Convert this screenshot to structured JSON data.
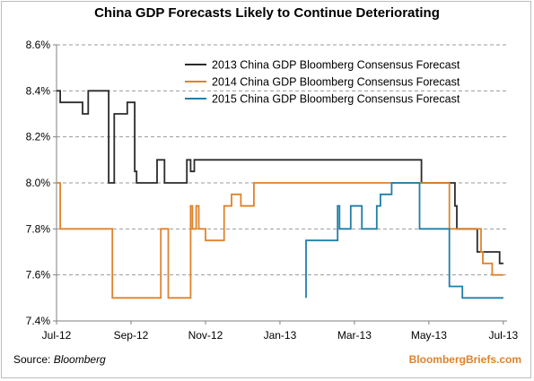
{
  "chart_data": {
    "type": "line",
    "title": "China GDP Forecasts Likely to Continue Deteriorating",
    "xlabel": "",
    "ylabel": "",
    "x_ticks": [
      "Jul-12",
      "Sep-12",
      "Nov-12",
      "Jan-13",
      "Mar-13",
      "May-13",
      "Jul-13"
    ],
    "y_ticks": [
      "7.4%",
      "7.6%",
      "7.8%",
      "8.0%",
      "8.2%",
      "8.4%",
      "8.6%"
    ],
    "ylim": [
      7.4,
      8.6
    ],
    "y_unit": "%",
    "x_unit": "months since Jul-12",
    "xlim": [
      0,
      12.1
    ],
    "grid": "horizontal dashed",
    "legend_position": "top-right",
    "series": [
      {
        "name": "2013 China GDP Bloomberg Consensus Forecast",
        "color": "#2b2b2b",
        "points": [
          [
            0.0,
            8.4
          ],
          [
            0.1,
            8.4
          ],
          [
            0.1,
            8.35
          ],
          [
            0.7,
            8.35
          ],
          [
            0.7,
            8.3
          ],
          [
            0.85,
            8.3
          ],
          [
            0.85,
            8.4
          ],
          [
            1.4,
            8.4
          ],
          [
            1.4,
            8.0
          ],
          [
            1.55,
            8.0
          ],
          [
            1.55,
            8.3
          ],
          [
            1.9,
            8.3
          ],
          [
            1.9,
            8.35
          ],
          [
            2.1,
            8.35
          ],
          [
            2.1,
            8.05
          ],
          [
            2.15,
            8.05
          ],
          [
            2.15,
            8.0
          ],
          [
            2.7,
            8.0
          ],
          [
            2.7,
            8.1
          ],
          [
            2.9,
            8.1
          ],
          [
            2.9,
            8.0
          ],
          [
            3.5,
            8.0
          ],
          [
            3.5,
            8.1
          ],
          [
            3.6,
            8.1
          ],
          [
            3.6,
            8.05
          ],
          [
            3.7,
            8.05
          ],
          [
            3.7,
            8.1
          ],
          [
            9.8,
            8.1
          ],
          [
            9.8,
            8.0
          ],
          [
            10.7,
            8.0
          ],
          [
            10.7,
            7.9
          ],
          [
            10.75,
            7.9
          ],
          [
            10.75,
            7.8
          ],
          [
            11.3,
            7.8
          ],
          [
            11.3,
            7.7
          ],
          [
            11.9,
            7.7
          ],
          [
            11.9,
            7.65
          ],
          [
            12.0,
            7.65
          ]
        ]
      },
      {
        "name": "2014 China GDP Bloomberg Consensus Forecast",
        "color": "#e0822a",
        "points": [
          [
            0.0,
            8.0
          ],
          [
            0.1,
            8.0
          ],
          [
            0.1,
            7.8
          ],
          [
            1.5,
            7.8
          ],
          [
            1.5,
            7.5
          ],
          [
            2.8,
            7.5
          ],
          [
            2.8,
            7.8
          ],
          [
            3.0,
            7.8
          ],
          [
            3.0,
            7.5
          ],
          [
            3.6,
            7.5
          ],
          [
            3.6,
            7.9
          ],
          [
            3.65,
            7.9
          ],
          [
            3.65,
            7.8
          ],
          [
            3.75,
            7.8
          ],
          [
            3.75,
            7.9
          ],
          [
            3.82,
            7.9
          ],
          [
            3.82,
            7.8
          ],
          [
            4.0,
            7.8
          ],
          [
            4.0,
            7.75
          ],
          [
            4.5,
            7.75
          ],
          [
            4.5,
            7.9
          ],
          [
            4.7,
            7.9
          ],
          [
            4.7,
            7.95
          ],
          [
            4.95,
            7.95
          ],
          [
            4.95,
            7.9
          ],
          [
            5.3,
            7.9
          ],
          [
            5.3,
            8.0
          ],
          [
            10.55,
            8.0
          ],
          [
            10.55,
            7.8
          ],
          [
            11.4,
            7.8
          ],
          [
            11.4,
            7.7
          ],
          [
            11.45,
            7.7
          ],
          [
            11.45,
            7.65
          ],
          [
            11.7,
            7.65
          ],
          [
            11.7,
            7.6
          ],
          [
            12.0,
            7.6
          ]
        ]
      },
      {
        "name": "2015 China GDP Bloomberg Consensus Forecast",
        "color": "#1f7fa8",
        "points": [
          [
            6.7,
            7.5
          ],
          [
            6.7,
            7.75
          ],
          [
            7.55,
            7.75
          ],
          [
            7.55,
            7.9
          ],
          [
            7.6,
            7.9
          ],
          [
            7.6,
            7.8
          ],
          [
            7.9,
            7.8
          ],
          [
            7.9,
            7.9
          ],
          [
            8.2,
            7.9
          ],
          [
            8.2,
            7.8
          ],
          [
            8.6,
            7.8
          ],
          [
            8.6,
            7.9
          ],
          [
            8.7,
            7.9
          ],
          [
            8.7,
            7.95
          ],
          [
            9.0,
            7.95
          ],
          [
            9.0,
            8.0
          ],
          [
            9.75,
            8.0
          ],
          [
            9.75,
            7.8
          ],
          [
            10.55,
            7.8
          ],
          [
            10.55,
            7.55
          ],
          [
            10.9,
            7.55
          ],
          [
            10.9,
            7.5
          ],
          [
            12.0,
            7.5
          ]
        ]
      }
    ]
  },
  "footer": {
    "source_prefix": "Source: ",
    "source_name": "Bloomberg",
    "brand": "BloombergBriefs.com"
  }
}
